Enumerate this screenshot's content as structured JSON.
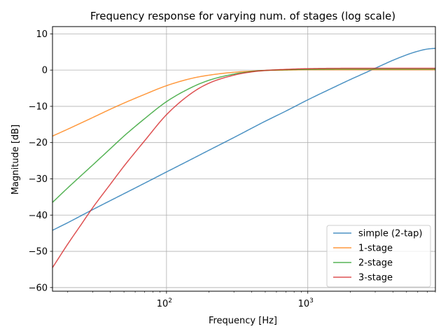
{
  "chart_data": {
    "type": "line",
    "title": "Frequency response for varying num. of stages (log scale)",
    "xlabel": "Frequency [Hz]",
    "ylabel": "Magnitude [dB]",
    "xscale": "log",
    "xlim": [
      15.6,
      8000
    ],
    "ylim": [
      -61,
      12
    ],
    "xticks": [
      {
        "value": 100,
        "base": "10",
        "exp": "2"
      },
      {
        "value": 1000,
        "base": "10",
        "exp": "3"
      }
    ],
    "yticks": [
      -60,
      -50,
      -40,
      -30,
      -20,
      -10,
      0,
      10
    ],
    "grid": true,
    "legend_position": "lower-right",
    "series": [
      {
        "name": "simple (2-tap)",
        "color": "#1f77b4",
        "x": [
          15.6,
          20,
          30,
          50,
          70,
          100,
          150,
          200,
          300,
          500,
          700,
          1000,
          1500,
          2000,
          2500,
          3000,
          3500,
          4000,
          5000,
          6000,
          7000,
          8000
        ],
        "y": [
          -44.2,
          -42.1,
          -38.5,
          -34.1,
          -31.2,
          -28.1,
          -24.6,
          -22.1,
          -18.6,
          -14.1,
          -11.3,
          -8.2,
          -4.9,
          -2.6,
          -0.9,
          0.5,
          1.7,
          2.7,
          4.2,
          5.2,
          5.8,
          6.0
        ]
      },
      {
        "name": "1-stage",
        "color": "#ff7f0e",
        "x": [
          15.6,
          20,
          30,
          40,
          50,
          70,
          100,
          150,
          200,
          300,
          400,
          500,
          700,
          1000,
          2000,
          4000,
          8000
        ],
        "y": [
          -18.2,
          -16.3,
          -13.1,
          -10.8,
          -9.1,
          -6.7,
          -4.3,
          -2.3,
          -1.4,
          -0.6,
          -0.3,
          -0.1,
          0.0,
          0.1,
          0.1,
          0.1,
          0.1
        ]
      },
      {
        "name": "2-stage",
        "color": "#2ca02c",
        "x": [
          15.6,
          20,
          30,
          40,
          50,
          70,
          100,
          150,
          200,
          300,
          400,
          500,
          700,
          1000,
          2000,
          4000,
          8000
        ],
        "y": [
          -36.5,
          -32.5,
          -26.2,
          -21.7,
          -18.2,
          -13.4,
          -8.7,
          -4.8,
          -2.8,
          -1.1,
          -0.4,
          -0.1,
          0.1,
          0.2,
          0.3,
          0.3,
          0.3
        ]
      },
      {
        "name": "3-stage",
        "color": "#d62728",
        "x": [
          15.6,
          20,
          25,
          30,
          40,
          50,
          70,
          100,
          150,
          200,
          300,
          400,
          500,
          700,
          1000,
          2000,
          4000,
          8000
        ],
        "y": [
          -54.5,
          -48.0,
          -42.5,
          -38.0,
          -31.5,
          -26.5,
          -19.5,
          -12.3,
          -6.4,
          -3.6,
          -1.4,
          -0.5,
          -0.1,
          0.2,
          0.4,
          0.5,
          0.5,
          0.5
        ]
      }
    ]
  }
}
